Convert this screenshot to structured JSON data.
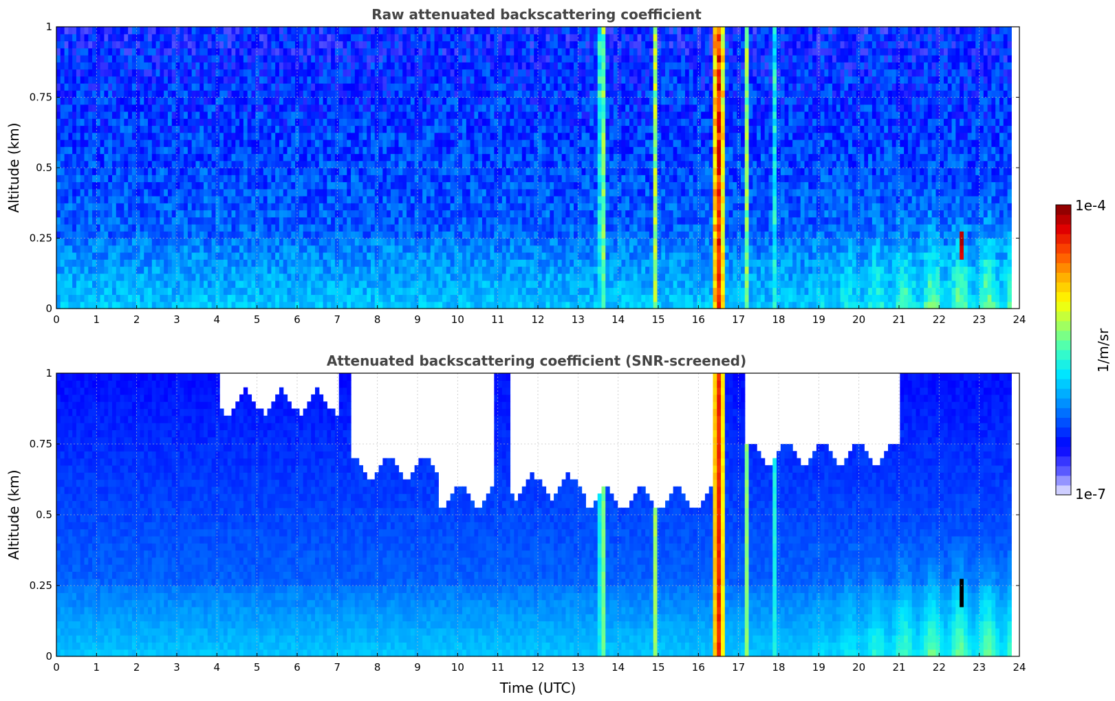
{
  "colors": {
    "title": "#444444",
    "scale": [
      "#ebebff",
      "#5a5aff",
      "#0000ff",
      "#0050ff",
      "#00a0ff",
      "#00e6ff",
      "#40ffbf",
      "#a0ff60",
      "#ffff00",
      "#ffb000",
      "#ff5000",
      "#e00000",
      "#800000"
    ]
  },
  "colorbar": {
    "max_label": "1e-4",
    "min_label": "1e-7",
    "unit_label": "1/m/sr",
    "scale": "log"
  },
  "chart_data": [
    {
      "type": "heatmap",
      "title": "Raw attenuated backscattering coefficient",
      "xlabel": "",
      "ylabel": "Altitude (km)",
      "xlim": [
        0,
        24
      ],
      "ylim": [
        0,
        1
      ],
      "xticks": [
        "0",
        "1",
        "2",
        "3",
        "4",
        "5",
        "6",
        "7",
        "8",
        "9",
        "10",
        "11",
        "12",
        "13",
        "14",
        "15",
        "16",
        "17",
        "18",
        "19",
        "20",
        "21",
        "22",
        "23",
        "24"
      ],
      "yticks": [
        "0",
        "0.25",
        "0.5",
        "0.75",
        "1"
      ],
      "data_end_time": 23.8,
      "grid": true,
      "features": [
        {
          "kind": "aerosol_layer",
          "time_start": 0,
          "time_end": 23.8,
          "alt_top": 0.25
        },
        {
          "kind": "cloud_column",
          "time": 13.6,
          "level": "high"
        },
        {
          "kind": "cloud_column",
          "time": 14.9,
          "level": "high"
        },
        {
          "kind": "cloud_column",
          "time": 16.5,
          "level": "very_high"
        },
        {
          "kind": "cloud_column",
          "time": 17.2,
          "level": "medium"
        },
        {
          "kind": "cloud_column",
          "time": 17.9,
          "level": "low"
        },
        {
          "kind": "plume",
          "time": 22.55,
          "alt_bottom": 0.17,
          "alt_top": 0.28,
          "level": "very_high"
        }
      ]
    },
    {
      "type": "heatmap",
      "title": "Attenuated backscattering coefficient (SNR-screened)",
      "xlabel": "Time (UTC)",
      "ylabel": "Altitude (km)",
      "xlim": [
        0,
        24
      ],
      "ylim": [
        0,
        1
      ],
      "xticks": [
        "0",
        "1",
        "2",
        "3",
        "4",
        "5",
        "6",
        "7",
        "8",
        "9",
        "10",
        "11",
        "12",
        "13",
        "14",
        "15",
        "16",
        "17",
        "18",
        "19",
        "20",
        "21",
        "22",
        "23",
        "24"
      ],
      "yticks": [
        "0",
        "0.25",
        "0.5",
        "0.75",
        "1"
      ],
      "data_end_time": 23.8,
      "grid": true,
      "screened_regions": [
        {
          "time_start": 4.1,
          "time_end": 7.0,
          "alt_bottom": 0.9
        },
        {
          "time_start": 7.3,
          "time_end": 9.5,
          "alt_bottom": 0.67
        },
        {
          "time_start": 9.5,
          "time_end": 10.9,
          "alt_bottom": 0.57
        },
        {
          "time_start": 11.3,
          "time_end": 13.2,
          "alt_bottom": 0.6
        },
        {
          "time_start": 13.2,
          "time_end": 16.4,
          "alt_bottom": 0.56
        },
        {
          "time_start": 17.2,
          "time_end": 21.0,
          "alt_bottom": 0.72
        }
      ]
    }
  ]
}
